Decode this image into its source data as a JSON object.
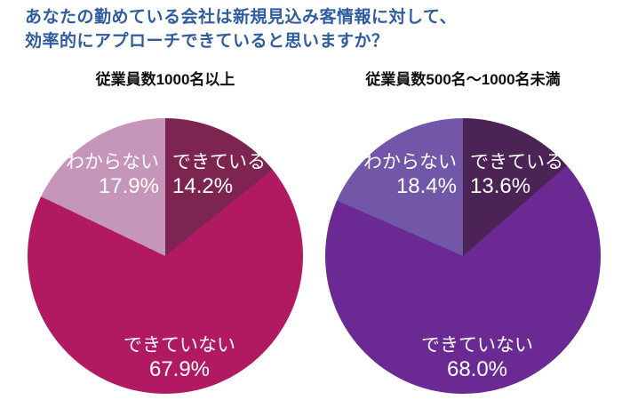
{
  "header": {
    "title_line1": "あなたの勤めている会社は新規見込み客情報に対して、",
    "title_line2": "効率的にアプローチできていると思いますか？",
    "title_color": "#2e5c9e"
  },
  "chart_data": [
    {
      "type": "pie",
      "title": "従業員数1000名以上",
      "start_angle_deg": 0,
      "direction": "clockwise",
      "legend_position": "none",
      "labels_on_slices": true,
      "label_text_color": "#ffffff",
      "slices": [
        {
          "label": "できている",
          "value": 14.2,
          "display": "14.2%",
          "color": "#7e2450"
        },
        {
          "label": "できていない",
          "value": 67.9,
          "display": "67.9%",
          "color": "#b11a63"
        },
        {
          "label": "わからない",
          "value": 17.9,
          "display": "17.9%",
          "color": "#c696ba"
        }
      ]
    },
    {
      "type": "pie",
      "title": "従業員数500名～1000名未満",
      "start_angle_deg": 0,
      "direction": "clockwise",
      "legend_position": "none",
      "labels_on_slices": true,
      "label_text_color": "#ffffff",
      "slices": [
        {
          "label": "できている",
          "value": 13.6,
          "display": "13.6%",
          "color": "#4b2355"
        },
        {
          "label": "できていない",
          "value": 68.0,
          "display": "68.0%",
          "color": "#6b2a93"
        },
        {
          "label": "わからない",
          "value": 18.4,
          "display": "18.4%",
          "color": "#7257a8"
        }
      ]
    }
  ]
}
